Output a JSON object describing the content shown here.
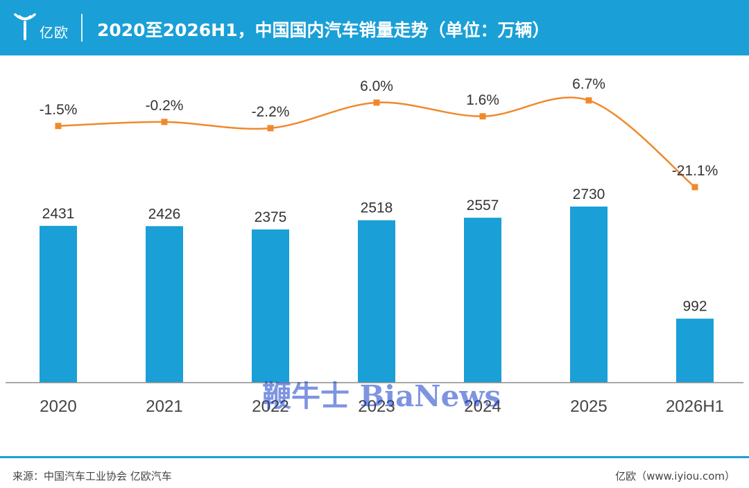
{
  "header": {
    "logo_text": "亿欧",
    "title": "2020至2026H1，中国国内汽车销量走势（单位：万辆）"
  },
  "chart_data": {
    "type": "bar",
    "categories": [
      "2020",
      "2021",
      "2022",
      "2023",
      "2024",
      "2025",
      "2026H1"
    ],
    "series": [
      {
        "type": "bar",
        "values": [
          2431,
          2426,
          2375,
          2518,
          2557,
          2730,
          992
        ],
        "color": "#1a9fd6"
      },
      {
        "type": "line",
        "values": [
          -1.5,
          -0.2,
          -2.2,
          6.0,
          1.6,
          6.7,
          -21.1
        ],
        "labels": [
          "-1.5%",
          "-0.2%",
          "-2.2%",
          "6.0%",
          "1.6%",
          "6.7%",
          "-21.1%"
        ],
        "color": "#f0892b"
      }
    ],
    "bar_ylim": [
      0,
      3000
    ],
    "line_ylim": [
      -30,
      10
    ],
    "grid": false,
    "legend": "none"
  },
  "footer": {
    "source": "来源：中国汽车工业协会 亿欧汽车",
    "site": "亿欧（www.iyiou.com）"
  },
  "watermark": "鞭牛士 BiaNews"
}
